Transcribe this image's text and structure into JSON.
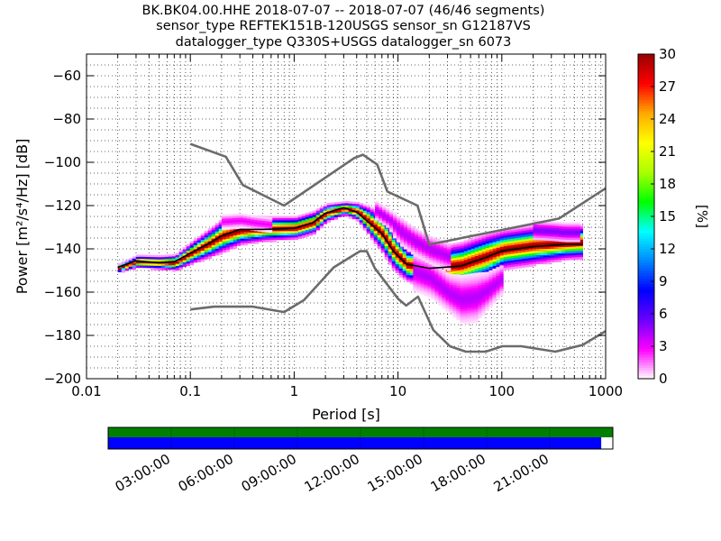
{
  "title_lines": [
    "BK.BK04.00.HHE   2018-07-07 -- 2018-07-07  (46/46 segments)",
    "sensor_type REFTEK151B-120USGS sensor_sn G12187VS",
    "datalogger_type Q330S+USGS datalogger_sn 6073"
  ],
  "chart_data": {
    "type": "heatmap",
    "xlabel": "Period [s]",
    "ylabel": "Power [m²/s⁴/Hz] [dB]",
    "x_scale": "log",
    "xlim": [
      0.01,
      1000
    ],
    "ylim": [
      -200,
      -50
    ],
    "x_ticks": [
      0.01,
      0.1,
      1,
      10,
      100,
      1000
    ],
    "x_tick_labels": [
      "0.01",
      "0.1",
      "1",
      "10",
      "100",
      "1000"
    ],
    "y_ticks": [
      -200,
      -180,
      -160,
      -140,
      -120,
      -100,
      -80,
      -60
    ],
    "y_tick_labels": [
      "−200",
      "−180",
      "−160",
      "−140",
      "−120",
      "−100",
      "−80",
      "−60"
    ],
    "grid": true,
    "noise_models": [
      {
        "name": "high",
        "color": "#6b6b6b",
        "points": [
          [
            0.1,
            -91.5
          ],
          [
            0.22,
            -97.4
          ],
          [
            0.32,
            -110.5
          ],
          [
            0.8,
            -120
          ],
          [
            3.8,
            -98
          ],
          [
            4.6,
            -96.5
          ],
          [
            6.3,
            -101
          ],
          [
            7.9,
            -113.5
          ],
          [
            15.4,
            -120
          ],
          [
            20,
            -138
          ],
          [
            354.8,
            -126
          ],
          [
            1000,
            -112
          ]
        ]
      },
      {
        "name": "low",
        "color": "#6b6b6b",
        "points": [
          [
            0.1,
            -168
          ],
          [
            0.17,
            -166.7
          ],
          [
            0.4,
            -166.7
          ],
          [
            0.8,
            -169.2
          ],
          [
            1.24,
            -163.7
          ],
          [
            2.4,
            -148.6
          ],
          [
            4.3,
            -141.1
          ],
          [
            5,
            -141.1
          ],
          [
            6,
            -149
          ],
          [
            10,
            -163
          ],
          [
            12,
            -166.2
          ],
          [
            15.6,
            -162.1
          ],
          [
            21.9,
            -177.5
          ],
          [
            31.6,
            -185
          ],
          [
            45,
            -187.5
          ],
          [
            70,
            -187.5
          ],
          [
            101,
            -185
          ],
          [
            154,
            -185
          ],
          [
            328,
            -187.5
          ],
          [
            600,
            -184.4
          ],
          [
            1000,
            -178
          ]
        ]
      }
    ],
    "mode_line": {
      "color": "#000000",
      "points": [
        [
          0.02,
          -148.5
        ],
        [
          0.03,
          -145.5
        ],
        [
          0.05,
          -146.5
        ],
        [
          0.07,
          -146
        ],
        [
          0.1,
          -142
        ],
        [
          0.15,
          -137.5
        ],
        [
          0.2,
          -134
        ],
        [
          0.3,
          -131
        ],
        [
          0.5,
          -131
        ],
        [
          1,
          -130.5
        ],
        [
          1.5,
          -128
        ],
        [
          2,
          -123.5
        ],
        [
          3,
          -121
        ],
        [
          4,
          -123
        ],
        [
          5,
          -127
        ],
        [
          7,
          -133
        ],
        [
          9,
          -141
        ],
        [
          12,
          -147
        ],
        [
          20,
          -149
        ],
        [
          40,
          -148
        ],
        [
          70,
          -144
        ],
        [
          100,
          -141
        ],
        [
          200,
          -139
        ],
        [
          400,
          -138
        ],
        [
          600,
          -138
        ]
      ]
    },
    "histogram_bands": [
      {
        "x": [
          0.02,
          0.03,
          0.05,
          0.07,
          0.1,
          0.15,
          0.2,
          0.3,
          0.5,
          1,
          1.5,
          2,
          3,
          4,
          5,
          7,
          9,
          12,
          20,
          40,
          70,
          100,
          200,
          400,
          600
        ],
        "center": [
          -148.5,
          -145.5,
          -146,
          -146,
          -141.5,
          -137,
          -133.5,
          -131,
          -130.5,
          -130,
          -127.5,
          -123,
          -121,
          -122.5,
          -126.5,
          -133,
          -141,
          -147,
          -148.5,
          -147,
          -143,
          -140,
          -138,
          -137,
          -136.5
        ],
        "spread": [
          0.7,
          1.1,
          1.2,
          1.4,
          2,
          2.6,
          3,
          2.6,
          2.2,
          2,
          2,
          1.6,
          1.2,
          1.6,
          2.5,
          3.5,
          3.5,
          3,
          3.5,
          4,
          4,
          3.5,
          3.5,
          3,
          3
        ],
        "max_pct": 30
      },
      {
        "x": [
          14,
          20,
          30,
          40,
          55,
          70,
          100
        ],
        "center": [
          -150,
          -153,
          -160,
          -163,
          -162,
          -159,
          -153
        ],
        "spread": [
          4,
          4,
          4,
          5,
          5,
          4,
          3
        ],
        "max_pct": 4
      },
      {
        "x": [
          0.2,
          0.3,
          0.4,
          0.6
        ],
        "center": [
          -127,
          -126.5,
          -127.5,
          -128.5
        ],
        "spread": [
          1.5,
          1.5,
          1.5,
          1.5
        ],
        "max_pct": 3
      },
      {
        "x": [
          6,
          8,
          10,
          14,
          20,
          30
        ],
        "center": [
          -122,
          -126,
          -131,
          -136,
          -140,
          -143
        ],
        "spread": [
          2,
          2,
          3,
          3,
          3,
          3
        ],
        "max_pct": 4
      },
      {
        "x": [
          200,
          300,
          400,
          550
        ],
        "center": [
          -131,
          -131.5,
          -132,
          -132
        ],
        "spread": [
          2,
          2,
          2,
          2
        ],
        "max_pct": 5
      }
    ],
    "colorbar": {
      "label": "[%]",
      "min": 0,
      "max": 30,
      "ticks": [
        0,
        3,
        6,
        9,
        12,
        15,
        18,
        21,
        24,
        27,
        30
      ],
      "tick_labels": [
        "0",
        "3",
        "6",
        "9",
        "12",
        "15",
        "18",
        "21",
        "24",
        "27",
        "30"
      ],
      "colors": [
        "#ffffff",
        "#ff00ff",
        "#6a00ff",
        "#0000ff",
        "#0088ff",
        "#00ffff",
        "#00ff00",
        "#aaff00",
        "#ffff00",
        "#ffaa00",
        "#ff0000",
        "#990000"
      ]
    },
    "timeline": {
      "labels": [
        "03:00:00",
        "06:00:00",
        "09:00:00",
        "12:00:00",
        "15:00:00",
        "18:00:00",
        "21:00:00"
      ],
      "label_hours": [
        3,
        6,
        9,
        12,
        15,
        18,
        21
      ],
      "span_hours": 24,
      "coverage_fraction": 0.977,
      "top_bar_color": "#008000",
      "bottom_bar_color": "#0000ff"
    }
  }
}
